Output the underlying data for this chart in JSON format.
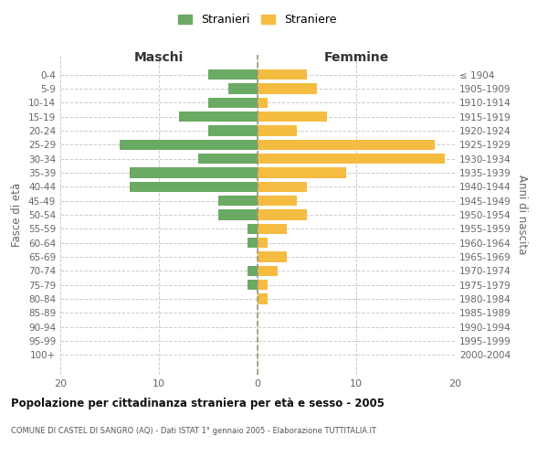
{
  "age_groups": [
    "0-4",
    "5-9",
    "10-14",
    "15-19",
    "20-24",
    "25-29",
    "30-34",
    "35-39",
    "40-44",
    "45-49",
    "50-54",
    "55-59",
    "60-64",
    "65-69",
    "70-74",
    "75-79",
    "80-84",
    "85-89",
    "90-94",
    "95-99",
    "100+"
  ],
  "birth_years": [
    "2000-2004",
    "1995-1999",
    "1990-1994",
    "1985-1989",
    "1980-1984",
    "1975-1979",
    "1970-1974",
    "1965-1969",
    "1960-1964",
    "1955-1959",
    "1950-1954",
    "1945-1949",
    "1940-1944",
    "1935-1939",
    "1930-1934",
    "1925-1929",
    "1920-1924",
    "1915-1919",
    "1910-1914",
    "1905-1909",
    "≤ 1904"
  ],
  "males": [
    5,
    3,
    5,
    8,
    5,
    14,
    6,
    13,
    13,
    4,
    4,
    1,
    1,
    0,
    1,
    1,
    0,
    0,
    0,
    0,
    0
  ],
  "females": [
    5,
    6,
    1,
    7,
    4,
    18,
    19,
    9,
    5,
    4,
    5,
    3,
    1,
    3,
    2,
    1,
    1,
    0,
    0,
    0,
    0
  ],
  "male_color": "#6aaa64",
  "female_color": "#f5bc42",
  "title": "Popolazione per cittadinanza straniera per età e sesso - 2005",
  "subtitle": "COMUNE DI CASTEL DI SANGRO (AQ) - Dati ISTAT 1° gennaio 2005 - Elaborazione TUTTITALIA.IT",
  "ylabel_left": "Fasce di età",
  "ylabel_right": "Anni di nascita",
  "label_maschi": "Maschi",
  "label_femmine": "Femmine",
  "legend_stranieri": "Stranieri",
  "legend_straniere": "Straniere",
  "xlim": 20,
  "background_color": "#ffffff",
  "grid_color": "#cccccc"
}
